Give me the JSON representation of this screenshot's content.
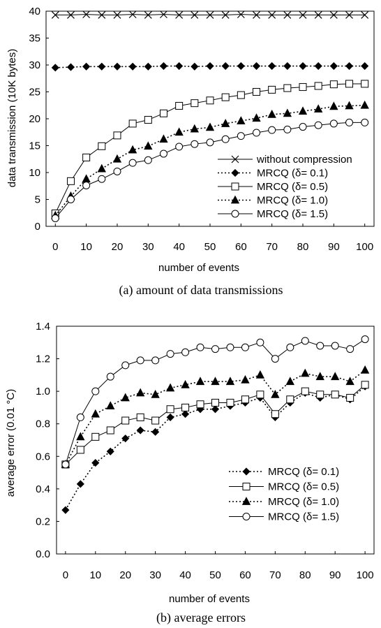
{
  "chart_data": [
    {
      "type": "line",
      "caption": "(a) amount of data transmissions",
      "xlabel": "number of events",
      "ylabel": "data transmission (10K bytes)",
      "x": [
        0,
        5,
        10,
        15,
        20,
        25,
        30,
        35,
        40,
        45,
        50,
        55,
        60,
        65,
        70,
        75,
        80,
        85,
        90,
        95,
        100
      ],
      "xticks": [
        "0",
        "10",
        "20",
        "30",
        "40",
        "50",
        "60",
        "70",
        "80",
        "90",
        "100"
      ],
      "yticks": [
        "0",
        "5",
        "10",
        "15",
        "20",
        "25",
        "30",
        "35",
        "40"
      ],
      "xlim": [
        -3,
        103
      ],
      "ylim": [
        0,
        40
      ],
      "grid": false,
      "legend_position": "bottom-right",
      "series": [
        {
          "name": "without compression",
          "style": "solid",
          "marker": "x",
          "values": [
            39.3,
            39.3,
            39.4,
            39.3,
            39.3,
            39.4,
            39.3,
            39.4,
            39.3,
            39.3,
            39.3,
            39.3,
            39.4,
            39.3,
            39.3,
            39.3,
            39.3,
            39.3,
            39.3,
            39.3,
            39.3
          ]
        },
        {
          "name": "MRCQ (δ= 0.1)",
          "style": "dotted",
          "marker": "diamond",
          "values": [
            29.5,
            29.6,
            29.7,
            29.7,
            29.7,
            29.7,
            29.7,
            29.8,
            29.8,
            29.7,
            29.8,
            29.8,
            29.8,
            29.8,
            29.8,
            29.8,
            29.8,
            29.8,
            29.8,
            29.8,
            29.8
          ]
        },
        {
          "name": "MRCQ (δ= 0.5)",
          "style": "solid",
          "marker": "square",
          "values": [
            2.4,
            8.4,
            12.8,
            14.9,
            16.9,
            19.1,
            19.8,
            21.0,
            22.4,
            22.9,
            23.4,
            24.0,
            24.4,
            25.0,
            25.4,
            25.7,
            25.9,
            26.1,
            26.4,
            26.5,
            26.5
          ]
        },
        {
          "name": "MRCQ (δ= 1.0)",
          "style": "dotted",
          "marker": "triangle",
          "values": [
            2.0,
            5.6,
            8.8,
            10.7,
            12.5,
            14.2,
            14.9,
            16.2,
            17.5,
            18.1,
            18.4,
            19.1,
            19.6,
            20.1,
            20.8,
            21.0,
            21.4,
            21.8,
            22.3,
            22.4,
            22.5
          ]
        },
        {
          "name": "MRCQ (δ= 1.5)",
          "style": "solid",
          "marker": "circle",
          "values": [
            1.5,
            5.0,
            7.6,
            8.8,
            10.2,
            11.8,
            12.3,
            13.5,
            14.8,
            15.3,
            15.6,
            16.2,
            16.8,
            17.4,
            17.9,
            18.0,
            18.5,
            18.8,
            19.1,
            19.3,
            19.3
          ]
        }
      ]
    },
    {
      "type": "line",
      "caption": "(b) average errors",
      "xlabel": "number of events",
      "ylabel": "average error (0.01 °C)",
      "x": [
        0,
        5,
        10,
        15,
        20,
        25,
        30,
        35,
        40,
        45,
        50,
        55,
        60,
        65,
        70,
        75,
        80,
        85,
        90,
        95,
        100
      ],
      "xticks": [
        "0",
        "10",
        "20",
        "30",
        "40",
        "50",
        "60",
        "70",
        "80",
        "90",
        "100"
      ],
      "yticks": [
        "0.0",
        "0.2",
        "0.4",
        "0.6",
        "0.8",
        "1.0",
        "1.2",
        "1.4"
      ],
      "xlim": [
        -3,
        103
      ],
      "ylim": [
        0,
        1.4
      ],
      "grid": false,
      "legend_position": "center-right",
      "series": [
        {
          "name": "MRCQ (δ= 0.1)",
          "style": "dotted",
          "marker": "diamond",
          "values": [
            0.27,
            0.43,
            0.56,
            0.63,
            0.71,
            0.76,
            0.75,
            0.84,
            0.86,
            0.89,
            0.89,
            0.91,
            0.93,
            0.96,
            0.84,
            0.93,
            0.99,
            0.96,
            0.98,
            0.95,
            1.03
          ]
        },
        {
          "name": "MRCQ (δ= 0.5)",
          "style": "solid",
          "marker": "square",
          "values": [
            0.55,
            0.64,
            0.72,
            0.76,
            0.82,
            0.84,
            0.82,
            0.89,
            0.9,
            0.92,
            0.93,
            0.93,
            0.95,
            0.98,
            0.86,
            0.95,
            1.0,
            0.98,
            0.98,
            0.96,
            1.04
          ]
        },
        {
          "name": "MRCQ (δ= 1.0)",
          "style": "dotted",
          "marker": "triangle",
          "values": [
            0.55,
            0.72,
            0.86,
            0.91,
            0.96,
            0.99,
            0.98,
            1.02,
            1.04,
            1.06,
            1.06,
            1.06,
            1.07,
            1.1,
            0.98,
            1.06,
            1.11,
            1.09,
            1.09,
            1.06,
            1.13
          ]
        },
        {
          "name": "MRCQ (δ= 1.5)",
          "style": "solid",
          "marker": "circle",
          "values": [
            0.55,
            0.84,
            1.0,
            1.09,
            1.16,
            1.19,
            1.19,
            1.23,
            1.24,
            1.27,
            1.26,
            1.27,
            1.27,
            1.3,
            1.2,
            1.27,
            1.31,
            1.28,
            1.28,
            1.26,
            1.32
          ]
        }
      ]
    }
  ]
}
